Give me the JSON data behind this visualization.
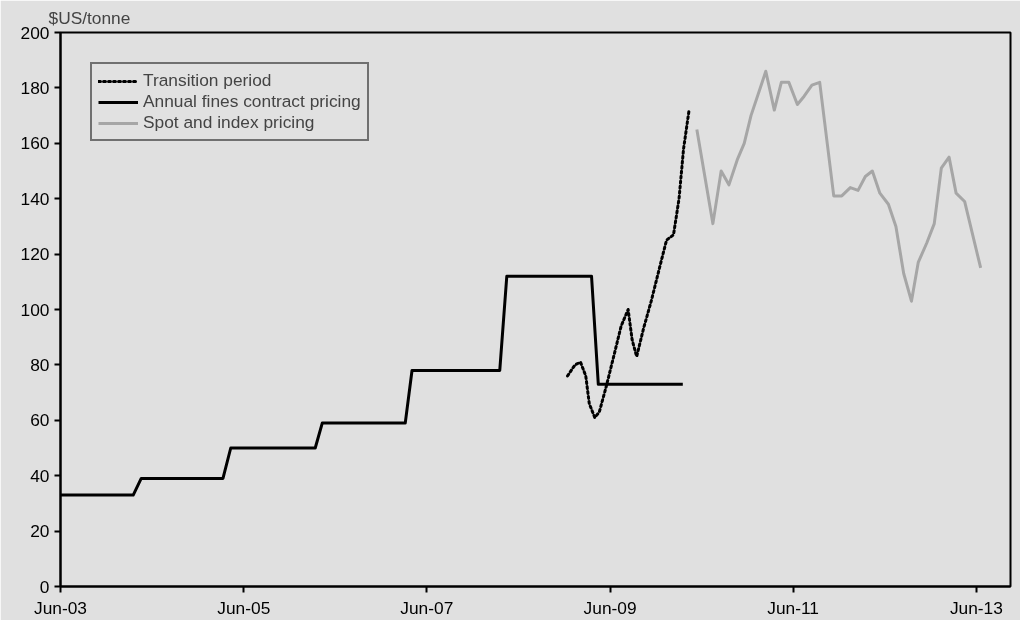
{
  "chart_data": {
    "type": "line",
    "ylabel": "$US/tonne",
    "xlim": [
      "2003-06-01",
      "2013-10-15"
    ],
    "ylim": [
      0,
      200
    ],
    "xticks": [
      {
        "value": "2003-06-01",
        "label": "Jun-03"
      },
      {
        "value": "2005-06-01",
        "label": "Jun-05"
      },
      {
        "value": "2007-06-01",
        "label": "Jun-07"
      },
      {
        "value": "2009-06-01",
        "label": "Jun-09"
      },
      {
        "value": "2011-06-01",
        "label": "Jun-11"
      },
      {
        "value": "2013-06-01",
        "label": "Jun-13"
      }
    ],
    "yticks": [
      0,
      20,
      40,
      60,
      80,
      100,
      120,
      140,
      160,
      180,
      200
    ],
    "grid": false,
    "legend": "top left",
    "marker": "none",
    "series": [
      {
        "name": "Transition period",
        "color": "#000000",
        "line_style": "dotted",
        "x": [
          "2008-12-13",
          "2009-01-12",
          "2009-02-03",
          "2009-02-24",
          "2009-03-10",
          "2009-04-01",
          "2009-04-19",
          "2009-05-16",
          "2009-06-18",
          "2009-07-15",
          "2009-08-12",
          "2009-08-28",
          "2009-09-15",
          "2009-10-12",
          "2009-11-12",
          "2009-12-15",
          "2010-01-12",
          "2010-02-09",
          "2010-03-03",
          "2010-03-21",
          "2010-04-12"
        ],
        "values": [
          76,
          80,
          81,
          76,
          66,
          61,
          63,
          72,
          84,
          94,
          100,
          89,
          83,
          93,
          103,
          115,
          125,
          127,
          140,
          158,
          172
        ]
      },
      {
        "name": "Annual fines contract pricing",
        "color": "#000000",
        "line_style": "solid",
        "x": [
          "2003-06-01",
          "2004-03-17",
          "2004-04-18",
          "2005-03-10",
          "2005-04-10",
          "2006-03-13",
          "2006-04-10",
          "2007-03-07",
          "2007-04-03",
          "2008-03-18",
          "2008-04-15",
          "2009-03-19",
          "2009-04-15",
          "2010-03-18"
        ],
        "values": [
          33,
          33,
          39,
          39,
          50,
          50,
          59,
          59,
          78,
          78,
          112,
          112,
          73,
          73
        ]
      },
      {
        "name": "Spot and index pricing",
        "color": "#a6a6a6",
        "line_style": "solid",
        "x": [
          "2010-05-13",
          "2010-07-16",
          "2010-08-18",
          "2010-09-18",
          "2010-10-21",
          "2010-11-18",
          "2010-12-15",
          "2011-02-12",
          "2011-03-18",
          "2011-04-15",
          "2011-05-15",
          "2011-06-18",
          "2011-07-15",
          "2011-08-15",
          "2011-09-15",
          "2011-11-10",
          "2011-12-12",
          "2012-01-15",
          "2012-02-15",
          "2012-03-15",
          "2012-04-12",
          "2012-05-12",
          "2012-06-15",
          "2012-07-15",
          "2012-08-15",
          "2012-09-15",
          "2012-10-12",
          "2012-11-15",
          "2012-12-15",
          "2013-01-12",
          "2013-02-12",
          "2013-03-12",
          "2013-04-15",
          "2013-06-18"
        ],
        "values": [
          165,
          131,
          150,
          145,
          154,
          160,
          170,
          186,
          172,
          182,
          182,
          174,
          177,
          181,
          182,
          141,
          141,
          144,
          143,
          148,
          150,
          142,
          138,
          130,
          113,
          103,
          117,
          124,
          131,
          151,
          155,
          142,
          139,
          115
        ]
      }
    ]
  }
}
